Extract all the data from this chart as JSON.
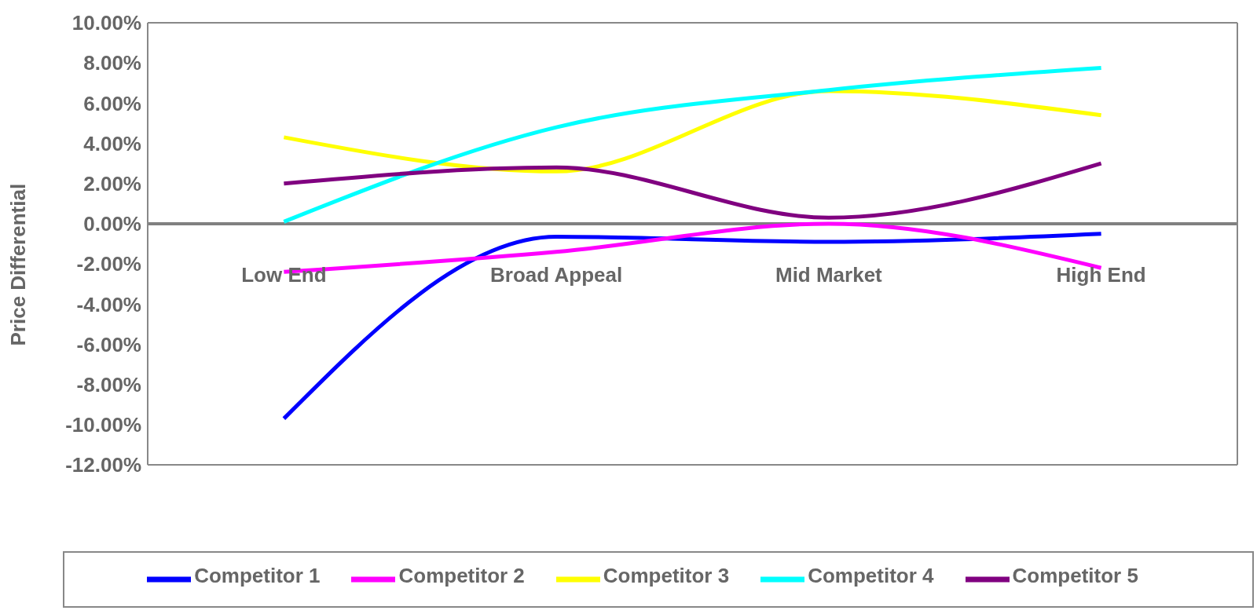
{
  "chart_data": {
    "type": "line",
    "ylabel": "Price Differential",
    "categories": [
      "Low End",
      "Broad Appeal",
      "Mid Market",
      "High End"
    ],
    "series": [
      {
        "name": "Competitor 1",
        "color": "#0000ff",
        "values": [
          -9.7,
          -0.65,
          -0.9,
          -0.5
        ]
      },
      {
        "name": "Competitor 2",
        "color": "#ff00ff",
        "values": [
          -2.4,
          -1.4,
          0,
          -2.2
        ]
      },
      {
        "name": "Competitor 3",
        "color": "#ffff00",
        "values": [
          4.3,
          2.6,
          6.6,
          5.4
        ]
      },
      {
        "name": "Competitor 4",
        "color": "#00ffff",
        "values": [
          0.1,
          4.8,
          6.65,
          7.75
        ]
      },
      {
        "name": "Competitor 5",
        "color": "#800080",
        "values": [
          2,
          2.8,
          0.3,
          3
        ]
      }
    ],
    "ylim": [
      -12,
      10
    ],
    "yticks": [
      {
        "value": -12,
        "label": "-12.00%"
      },
      {
        "value": -10,
        "label": "-10.00%"
      },
      {
        "value": -8,
        "label": "-8.00%"
      },
      {
        "value": -6,
        "label": "-6.00%"
      },
      {
        "value": -4,
        "label": "-4.00%"
      },
      {
        "value": -2,
        "label": "-2.00%"
      },
      {
        "value": 0,
        "label": "0.00%"
      },
      {
        "value": 2,
        "label": "2.00%"
      },
      {
        "value": 4,
        "label": "4.00%"
      },
      {
        "value": 6,
        "label": "6.00%"
      },
      {
        "value": 8,
        "label": "8.00%"
      },
      {
        "value": 10,
        "label": "10.00%"
      }
    ],
    "grid": false,
    "legend": "bottom",
    "marker": "none",
    "line_style": "solid"
  }
}
